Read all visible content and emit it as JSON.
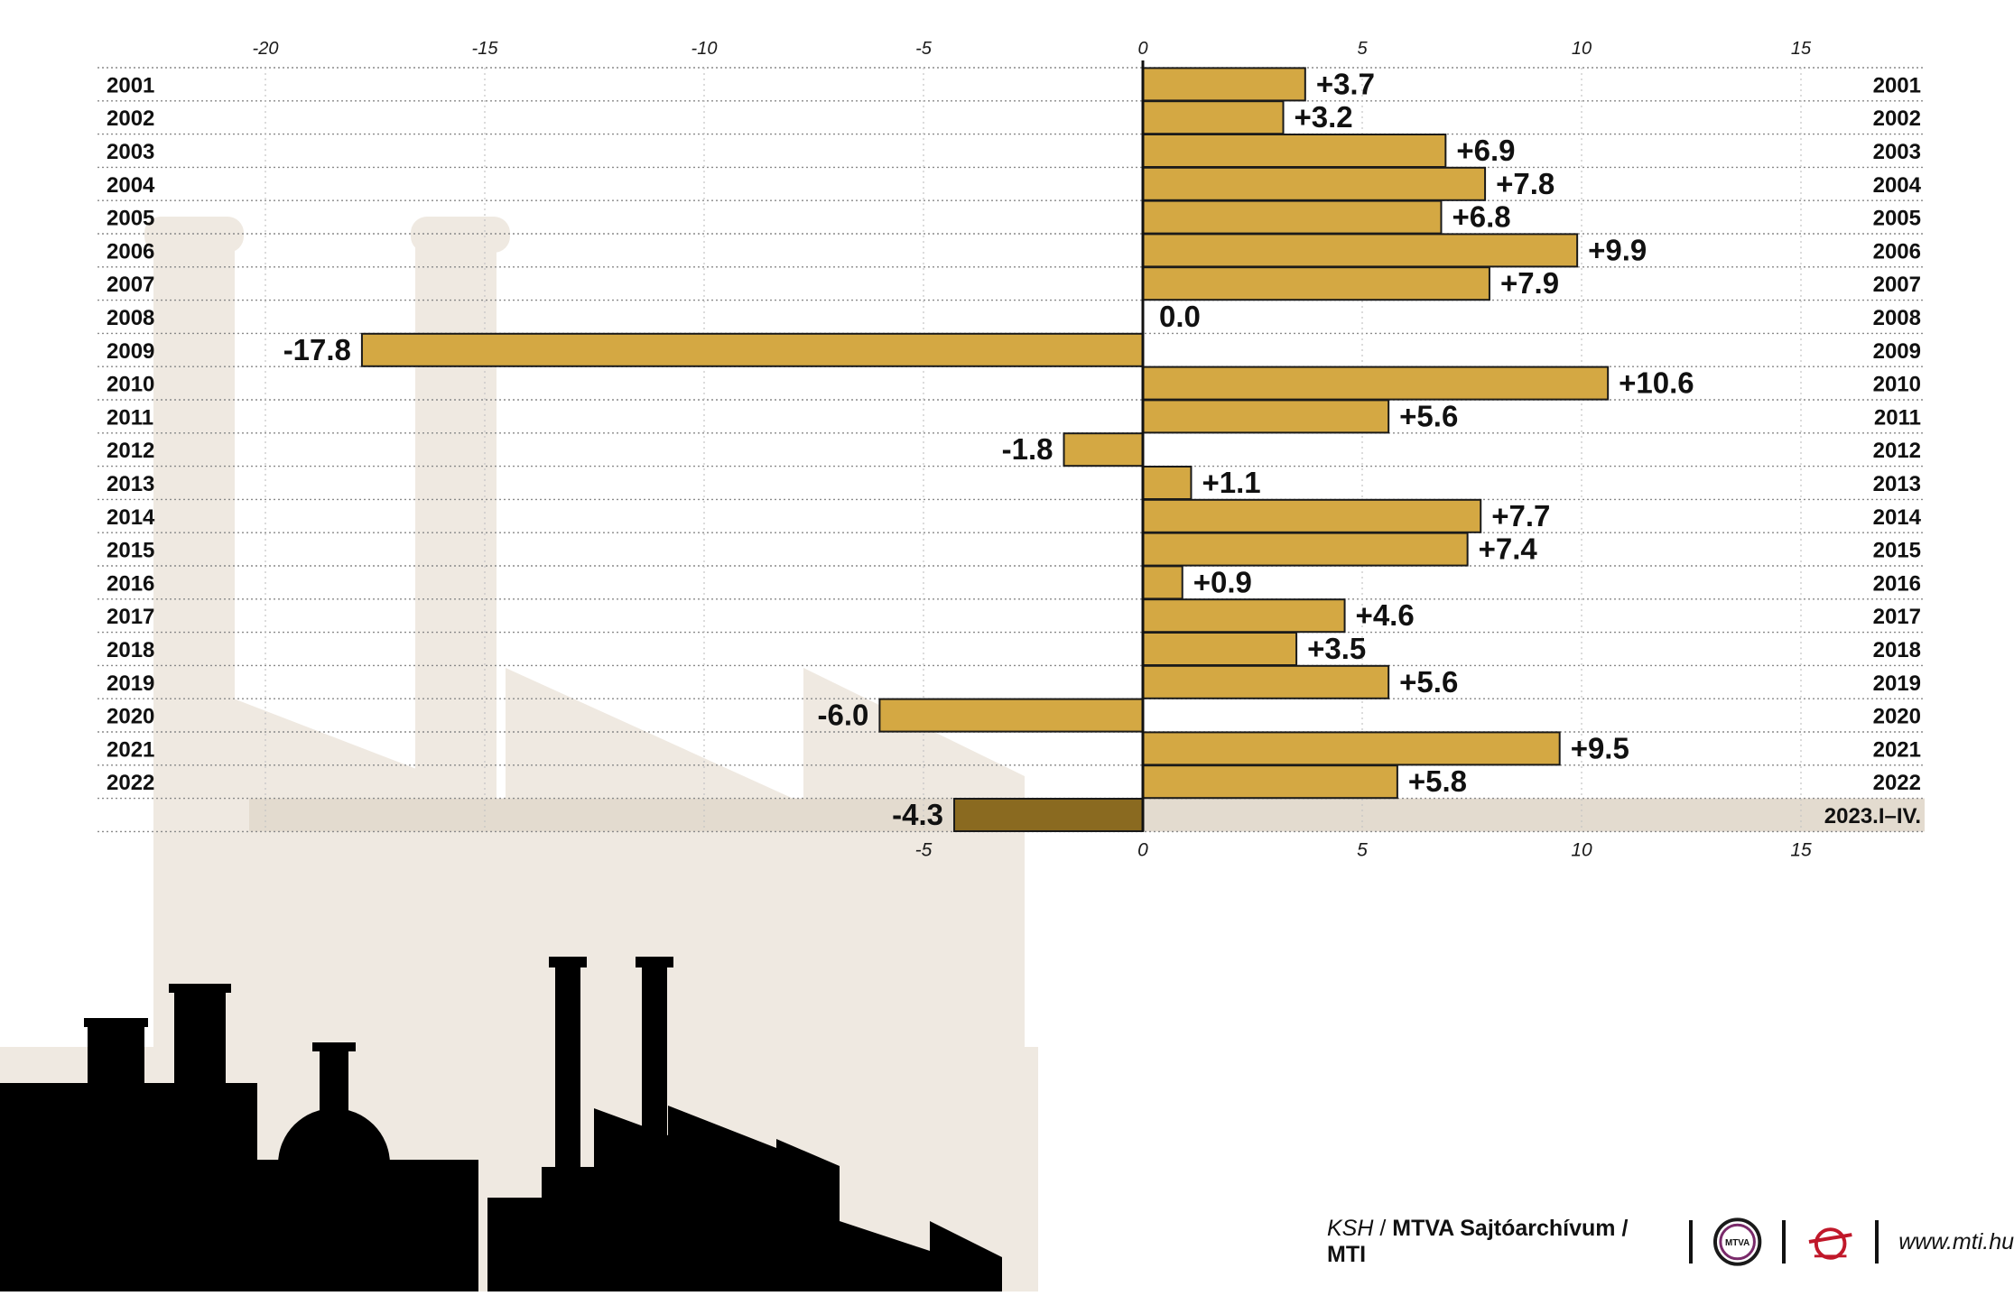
{
  "chart_data": {
    "type": "bar",
    "orientation": "horizontal",
    "categories": [
      "2001",
      "2002",
      "2003",
      "2004",
      "2005",
      "2006",
      "2007",
      "2008",
      "2009",
      "2010",
      "2011",
      "2012",
      "2013",
      "2014",
      "2015",
      "2016",
      "2017",
      "2018",
      "2019",
      "2020",
      "2021",
      "2022",
      "2023.I–IV."
    ],
    "values": [
      3.7,
      3.2,
      6.9,
      7.8,
      6.8,
      9.9,
      7.9,
      0.0,
      -17.8,
      10.6,
      5.6,
      -1.8,
      1.1,
      7.7,
      7.4,
      0.9,
      4.6,
      3.5,
      5.6,
      -6.0,
      9.5,
      5.8,
      -4.3
    ],
    "labels": [
      "+3.7",
      "+3.2",
      "+6.9",
      "+7.8",
      "+6.8",
      "+9.9",
      "+7.9",
      "0.0",
      "-17.8",
      "+10.6",
      "+5.6",
      "-1.8",
      "+1.1",
      "+7.7",
      "+7.4",
      "+0.9",
      "+4.6",
      "+3.5",
      "+5.6",
      "-6.0",
      "+9.5",
      "+5.8",
      "-4.3"
    ],
    "highlight_last": true,
    "xlim": [
      -20,
      15
    ],
    "xticks_top": [
      -20,
      -15,
      -10,
      -5,
      0,
      5,
      10,
      15
    ],
    "xticks_bottom": [
      -5,
      0,
      5,
      10,
      15
    ],
    "tick_labels_top": [
      "-20",
      "-15",
      "-10",
      "-5",
      "0",
      "5",
      "10",
      "15"
    ],
    "tick_labels_bottom": [
      "-5",
      "0",
      "5",
      "10",
      "15"
    ],
    "grid": true,
    "colors": {
      "bar": "#d4a843",
      "bar_highlight": "#8a6a20",
      "highlight_band": "#e3dbcf",
      "background_art": "#efe9e1",
      "silhouette": "#000000"
    }
  },
  "credits": {
    "source_prefix": "KSH",
    "source_rest": "MTVA Sajtóarchívum / MTI",
    "logo1_text": "MTVA",
    "logo1_icon": "mtva-logo-icon",
    "logo2_icon": "mti-logo-icon",
    "url": "www.mti.hu"
  }
}
